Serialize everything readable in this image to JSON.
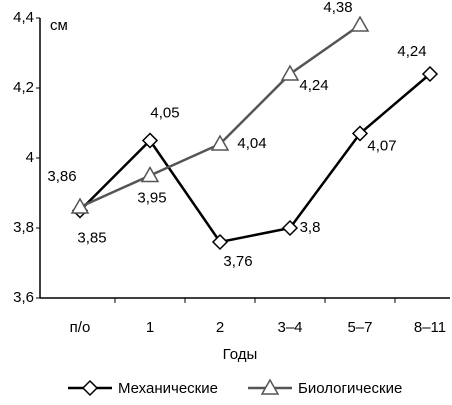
{
  "chart_data": {
    "type": "line",
    "y_label": "см",
    "x_label": "Годы",
    "categories": [
      "п/о",
      "1",
      "2",
      "3–4",
      "5–7",
      "8–11"
    ],
    "series": [
      {
        "name": "Механические",
        "color": "#000000",
        "marker": "diamond",
        "values": [
          3.85,
          4.05,
          3.76,
          3.8,
          4.07,
          4.24
        ],
        "value_labels": [
          "3,85",
          "4,05",
          "3,76",
          "3,8",
          "4,07",
          "4,24"
        ]
      },
      {
        "name": "Биологические",
        "color": "#555555",
        "marker": "triangle",
        "values": [
          3.86,
          3.95,
          4.04,
          4.24,
          4.38,
          null
        ],
        "value_labels": [
          "3,86",
          "3,95",
          "4,04",
          "4,24",
          "4,38",
          null
        ]
      }
    ],
    "ylim": [
      3.6,
      4.4
    ],
    "yticks": [
      {
        "value": 3.6,
        "label": "3,6"
      },
      {
        "value": 3.8,
        "label": "3,8"
      },
      4,
      {
        "value": 4.2,
        "label": "4,2"
      },
      {
        "value": 4.4,
        "label": "4,4"
      }
    ],
    "legend": "bottom"
  }
}
